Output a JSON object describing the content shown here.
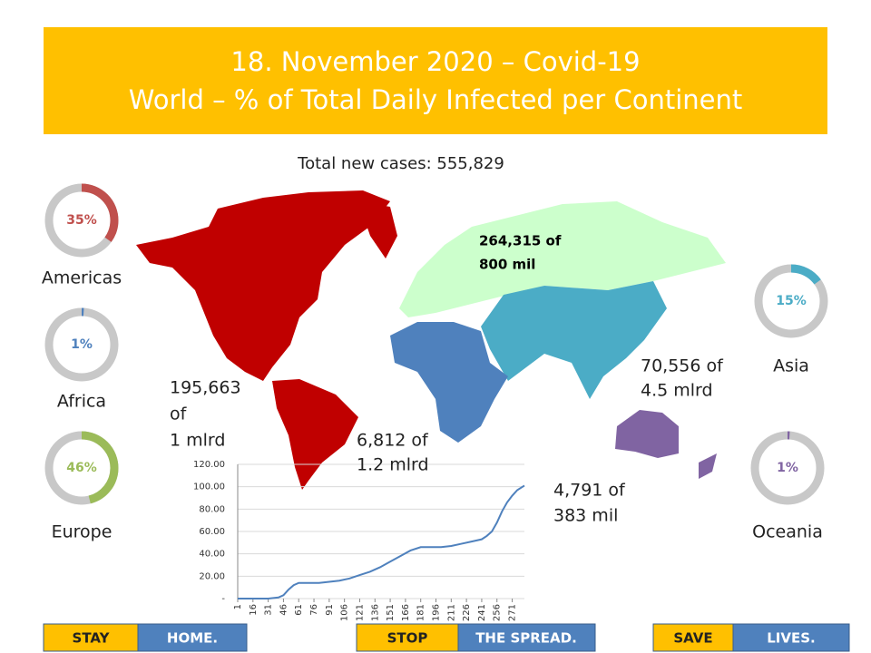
{
  "header": {
    "title": "18. November 2020 – Covid-19",
    "subtitle": "World – % of Total Daily Infected per Continent"
  },
  "total": "Total new cases: 555,829",
  "map_labels": [
    {
      "lines": [
        "264,315 of",
        "800 mil"
      ]
    },
    {
      "lines": [
        "195,663",
        "of",
        "1 mlrd"
      ]
    },
    {
      "lines": [
        "6,812 of",
        "1.2 mlrd"
      ]
    },
    {
      "lines": [
        "70,556 of",
        "4.5 mlrd"
      ]
    },
    {
      "lines": [
        "4,791 of",
        "383 mil"
      ]
    }
  ],
  "chart_data": [
    {
      "type": "donut",
      "categories": [
        "Americas"
      ],
      "values": [
        35
      ],
      "value_labels": [
        "35%"
      ],
      "color": "#c0504d"
    },
    {
      "type": "donut",
      "categories": [
        "Africa"
      ],
      "values": [
        1
      ],
      "value_labels": [
        "1%"
      ],
      "color": "#4f81bd"
    },
    {
      "type": "donut",
      "categories": [
        "Europe"
      ],
      "values": [
        46
      ],
      "value_labels": [
        "46%"
      ],
      "color": "#9bbb59"
    },
    {
      "type": "donut",
      "categories": [
        "Asia"
      ],
      "values": [
        15
      ],
      "value_labels": [
        "15%"
      ],
      "color": "#4bacc6"
    },
    {
      "type": "donut",
      "categories": [
        "Oceania"
      ],
      "values": [
        1
      ],
      "value_labels": [
        "1%"
      ],
      "color": "#8064a2"
    },
    {
      "type": "line",
      "color": "#4f81bd",
      "x": [
        1,
        11,
        21,
        31,
        41,
        46,
        51,
        56,
        61,
        71,
        81,
        91,
        101,
        111,
        121,
        131,
        141,
        151,
        161,
        171,
        181,
        191,
        201,
        211,
        221,
        231,
        241,
        246,
        251,
        256,
        261,
        266,
        271,
        276,
        283
      ],
      "values": [
        0,
        0,
        0,
        0,
        1,
        3,
        8,
        12,
        14,
        14,
        14,
        15,
        16,
        18,
        21,
        24,
        28,
        33,
        38,
        43,
        46,
        46,
        46,
        47,
        49,
        51,
        53,
        56,
        60,
        68,
        78,
        86,
        92,
        97,
        101
      ],
      "xlim": [
        1,
        283
      ],
      "xticks": [
        1,
        16,
        31,
        46,
        61,
        76,
        91,
        106,
        121,
        136,
        151,
        166,
        181,
        196,
        211,
        226,
        241,
        256,
        271
      ],
      "ylim": [
        0,
        120
      ],
      "yticks": [
        {
          "value": 0,
          "label": "-"
        },
        {
          "value": 20,
          "label": "20.00"
        },
        {
          "value": 40,
          "label": "40.00"
        },
        {
          "value": 60,
          "label": "60.00"
        },
        {
          "value": 80,
          "label": "80.00"
        },
        {
          "value": 100,
          "label": "100.00"
        },
        {
          "value": 120,
          "label": "120.00"
        }
      ],
      "grid": true
    }
  ],
  "footer": [
    {
      "left": "STAY",
      "right": "HOME."
    },
    {
      "left": "STOP",
      "right": "THE SPREAD."
    },
    {
      "left": "SAVE",
      "right": "LIVES."
    }
  ]
}
